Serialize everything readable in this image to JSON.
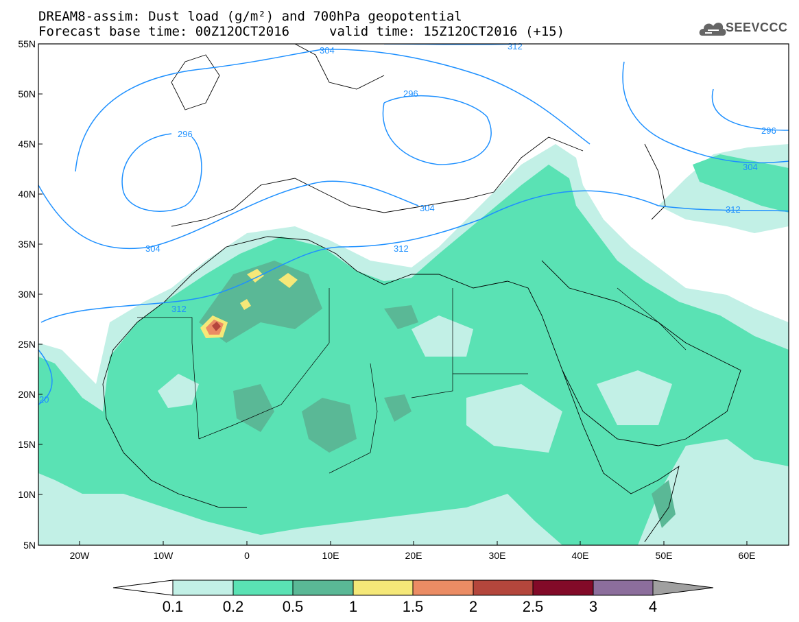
{
  "header": {
    "title_line1": "DREAM8-assim: Dust load (g/m²) and 700hPa geopotential",
    "title_line2_left": "Forecast base time: 00Z12OCT2016",
    "title_line2_right": "valid time: 15Z12OCT2016 (+15)",
    "logo_text": "SEEVCCC"
  },
  "axes": {
    "lat_labels": [
      "55N",
      "50N",
      "45N",
      "40N",
      "35N",
      "30N",
      "25N",
      "20N",
      "15N",
      "10N",
      "5N"
    ],
    "lon_labels": [
      "20W",
      "10W",
      "0",
      "10E",
      "20E",
      "30E",
      "40E",
      "50E",
      "60E"
    ]
  },
  "contours": {
    "labels": [
      "304",
      "312",
      "296",
      "296",
      "296",
      "304",
      "312",
      "304",
      "312",
      "304",
      "312",
      "20"
    ]
  },
  "colorbar": {
    "colors": [
      "#c2f0e6",
      "#5ae2b4",
      "#5ab896",
      "#f5e878",
      "#eb8c64",
      "#b4463c",
      "#820a28",
      "#8c6e9c",
      "#a0a0a0"
    ],
    "tick_labels": [
      "0.1",
      "0.2",
      "0.5",
      "1",
      "1.5",
      "2",
      "2.5",
      "3",
      "4"
    ]
  },
  "map_colors": {
    "level_01": "#c2f0e6",
    "level_02": "#5ae2b4",
    "level_05": "#5ab896",
    "level_1": "#f5e878",
    "level_15": "#eb8c64",
    "level_2": "#b4463c",
    "contour": "#1e90ff"
  }
}
